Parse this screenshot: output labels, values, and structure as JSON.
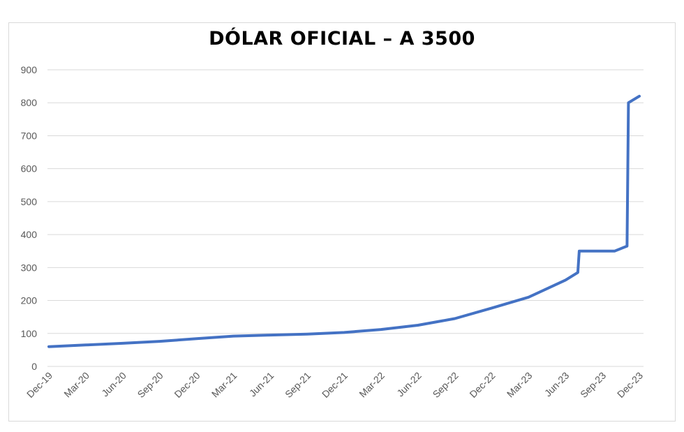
{
  "chart_data": {
    "type": "line",
    "title": "DÓLAR OFICIAL – A 3500",
    "xlabel": "",
    "ylabel": "",
    "ylim": [
      0,
      900
    ],
    "yticks": [
      0,
      100,
      200,
      300,
      400,
      500,
      600,
      700,
      800,
      900
    ],
    "grid": true,
    "legend": "none",
    "colors": {
      "line": "#4472c4",
      "grid": "#d9d9d9",
      "tick_text": "#595959"
    },
    "x_tick_labels": [
      "Dec-19",
      "Mar-20",
      "Jun-20",
      "Sep-20",
      "Dec-20",
      "Mar-21",
      "Jun-21",
      "Sep-21",
      "Dec-21",
      "Mar-22",
      "Jun-22",
      "Sep-22",
      "Dec-22",
      "Mar-23",
      "Jun-23",
      "Sep-23",
      "Dec-23"
    ],
    "series": [
      {
        "points": [
          [
            "Dec-19",
            60
          ],
          [
            "Mar-20",
            65
          ],
          [
            "Jun-20",
            70
          ],
          [
            "Sep-20",
            76
          ],
          [
            "Dec-20",
            84
          ],
          [
            "Mar-21",
            92
          ],
          [
            "Jun-21",
            95
          ],
          [
            "Sep-21",
            98
          ],
          [
            "Dec-21",
            103
          ],
          [
            "Mar-22",
            112
          ],
          [
            "Jun-22",
            125
          ],
          [
            "Sep-22",
            145
          ],
          [
            "Dec-22",
            177
          ],
          [
            "Mar-23",
            210
          ],
          [
            "Jun-23",
            262
          ],
          [
            "Jul-23",
            285
          ],
          [
            "Jul-23",
            350
          ],
          [
            "Oct-23",
            350
          ],
          [
            "Nov-23",
            365
          ],
          [
            "Nov-23",
            800
          ],
          [
            "Dec-23",
            820
          ]
        ]
      }
    ]
  }
}
